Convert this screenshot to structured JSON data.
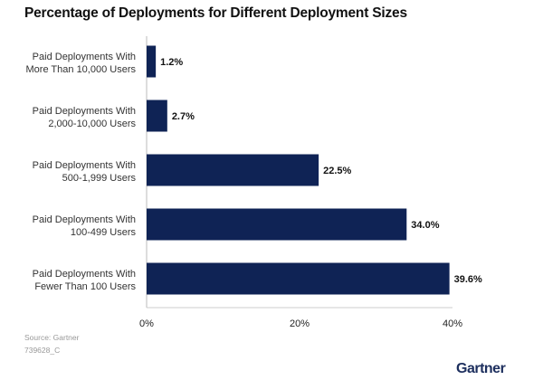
{
  "chart_data": {
    "type": "bar",
    "orientation": "horizontal",
    "title": "Percentage of Deployments for Different Deployment Sizes",
    "categories": [
      [
        "Paid Deployments With",
        "More Than 10,000 Users"
      ],
      [
        "Paid Deployments With",
        "2,000-10,000 Users"
      ],
      [
        "Paid Deployments With",
        "500-1,999 Users"
      ],
      [
        "Paid Deployments With",
        "100-499 Users"
      ],
      [
        "Paid Deployments With",
        "Fewer Than 100 Users"
      ]
    ],
    "values": [
      1.2,
      2.7,
      22.5,
      34.0,
      39.6
    ],
    "data_labels": [
      "1.2%",
      "2.7%",
      "22.5%",
      "34.0%",
      "39.6%"
    ],
    "xlim": [
      0,
      40
    ],
    "xticks": [
      0,
      20,
      40
    ],
    "xtick_labels": [
      "0%",
      "20%",
      "40%"
    ],
    "xlabel": "",
    "ylabel": "",
    "grid": false,
    "bar_color": "#0f2355"
  },
  "footer": {
    "source": "Source: Gartner",
    "id": "739628_C",
    "logo": "Gartner"
  }
}
